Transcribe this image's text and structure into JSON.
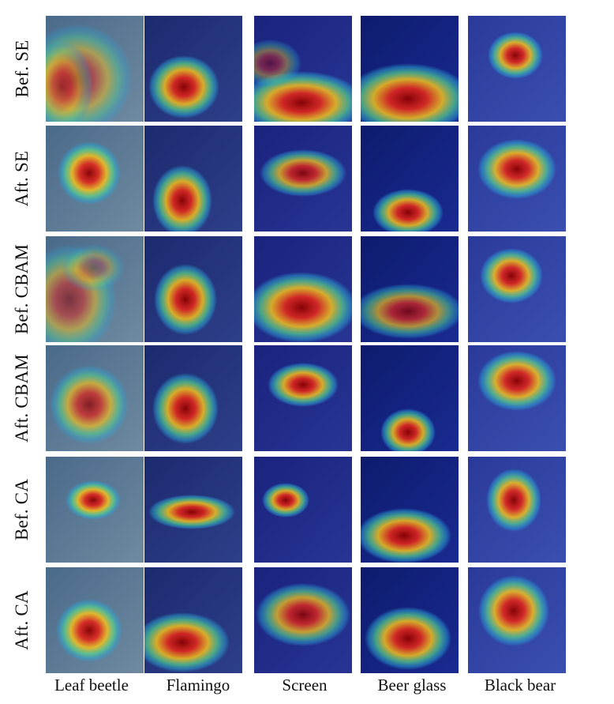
{
  "figure": {
    "columns": [
      "Leaf beetle",
      "Flamingo",
      "Screen",
      "Beer glass",
      "Black bear"
    ],
    "rows": [
      "Bef. SE",
      "Aft. SE",
      "Bef. CBAM",
      "Aft. CBAM",
      "Bef. CA",
      "Aft. CA"
    ]
  }
}
